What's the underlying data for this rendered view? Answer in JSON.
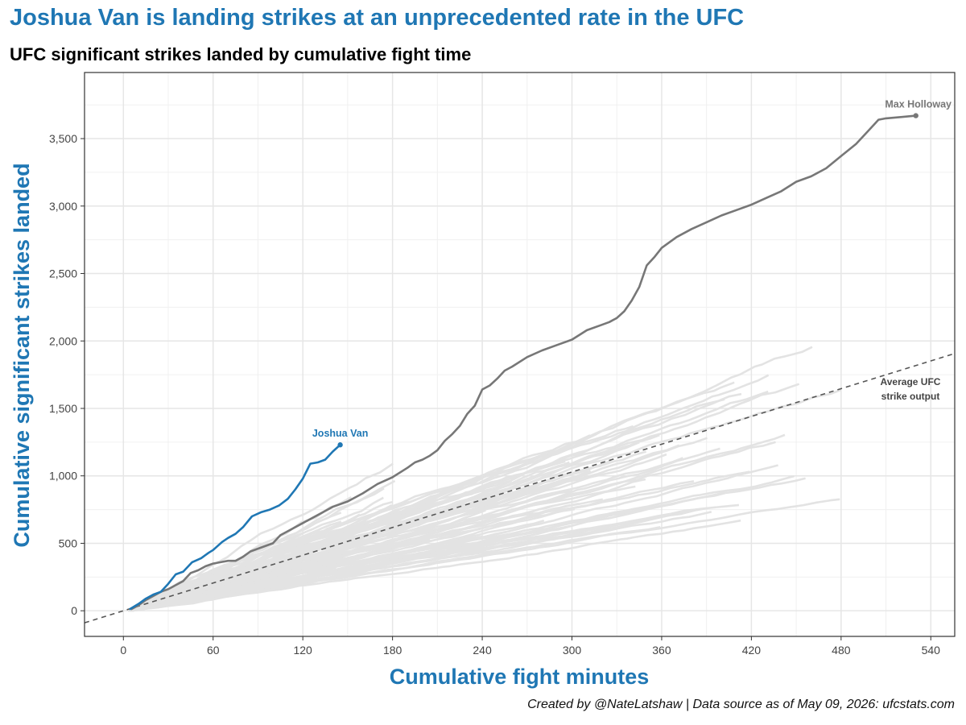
{
  "title": "Joshua Van is landing strikes at an unprecedented rate in the UFC",
  "subtitle": "UFC significant strikes landed by cumulative fight time",
  "caption": "Created by @NateLatshaw | Data source as of May 09, 2026: ufcstats.com",
  "colors": {
    "accent": "#1f77b4",
    "highlight_gray": "#777777",
    "background_lines": "#e3e3e3",
    "average_line": "#555555"
  },
  "chart_data": {
    "type": "line",
    "title": "Joshua Van is landing strikes at an unprecedented rate in the UFC",
    "subtitle": "UFC significant strikes landed by cumulative fight time",
    "xlabel": "Cumulative fight minutes",
    "ylabel": "Cumulative significant strikes landed",
    "xlim": [
      -26,
      556
    ],
    "ylim": [
      -190,
      3990
    ],
    "x_ticks": [
      0,
      60,
      120,
      180,
      240,
      300,
      360,
      420,
      480,
      540
    ],
    "x_tick_labels": [
      "0",
      "60",
      "120",
      "180",
      "240",
      "300",
      "360",
      "420",
      "480",
      "540"
    ],
    "y_ticks": [
      0,
      500,
      1000,
      1500,
      2000,
      2500,
      3000,
      3500
    ],
    "y_tick_labels": [
      "0",
      "500",
      "1,000",
      "1,500",
      "2,000",
      "2,500",
      "3,000",
      "3,500"
    ],
    "grid": true,
    "legend": "none",
    "series": [
      {
        "name": "Joshua Van",
        "color": "#1f77b4",
        "label_position": "end",
        "x": [
          4,
          10,
          15,
          20,
          25,
          30,
          35,
          40,
          46,
          52,
          57,
          60,
          66,
          70,
          75,
          80,
          86,
          92,
          98,
          104,
          110,
          115,
          120,
          125,
          130,
          135,
          140,
          145
        ],
        "y": [
          10,
          50,
          90,
          120,
          140,
          200,
          270,
          290,
          360,
          390,
          430,
          450,
          510,
          540,
          570,
          620,
          700,
          730,
          750,
          780,
          830,
          900,
          980,
          1090,
          1100,
          1120,
          1180,
          1230
        ]
      },
      {
        "name": "Max Holloway",
        "color": "#777777",
        "label_position": "end",
        "x": [
          5,
          10,
          15,
          20,
          25,
          30,
          35,
          40,
          45,
          50,
          55,
          60,
          65,
          70,
          75,
          80,
          85,
          90,
          100,
          105,
          110,
          120,
          130,
          140,
          150,
          160,
          170,
          180,
          190,
          195,
          200,
          205,
          210,
          215,
          220,
          225,
          230,
          235,
          240,
          245,
          250,
          255,
          260,
          270,
          280,
          290,
          300,
          310,
          320,
          325,
          330,
          335,
          340,
          345,
          350,
          355,
          360,
          370,
          380,
          390,
          400,
          410,
          420,
          430,
          440,
          450,
          460,
          470,
          480,
          490,
          500,
          505,
          510,
          520,
          530
        ],
        "y": [
          10,
          40,
          80,
          110,
          140,
          160,
          190,
          220,
          280,
          300,
          330,
          350,
          360,
          370,
          370,
          400,
          440,
          460,
          500,
          560,
          590,
          650,
          710,
          770,
          810,
          870,
          940,
          990,
          1060,
          1100,
          1120,
          1150,
          1190,
          1260,
          1310,
          1370,
          1460,
          1520,
          1640,
          1670,
          1720,
          1780,
          1810,
          1880,
          1930,
          1970,
          2010,
          2080,
          2120,
          2140,
          2170,
          2220,
          2300,
          2400,
          2560,
          2620,
          2690,
          2770,
          2830,
          2880,
          2930,
          2970,
          3010,
          3060,
          3110,
          3180,
          3220,
          3280,
          3370,
          3460,
          3580,
          3640,
          3650,
          3660,
          3670
        ]
      }
    ],
    "average_line": {
      "label": "Average UFC strike output",
      "slope": 3.43,
      "x_range": [
        -26,
        556
      ]
    },
    "background_series_count": 85,
    "background_series_note": "other UFC fighters, light gray"
  }
}
